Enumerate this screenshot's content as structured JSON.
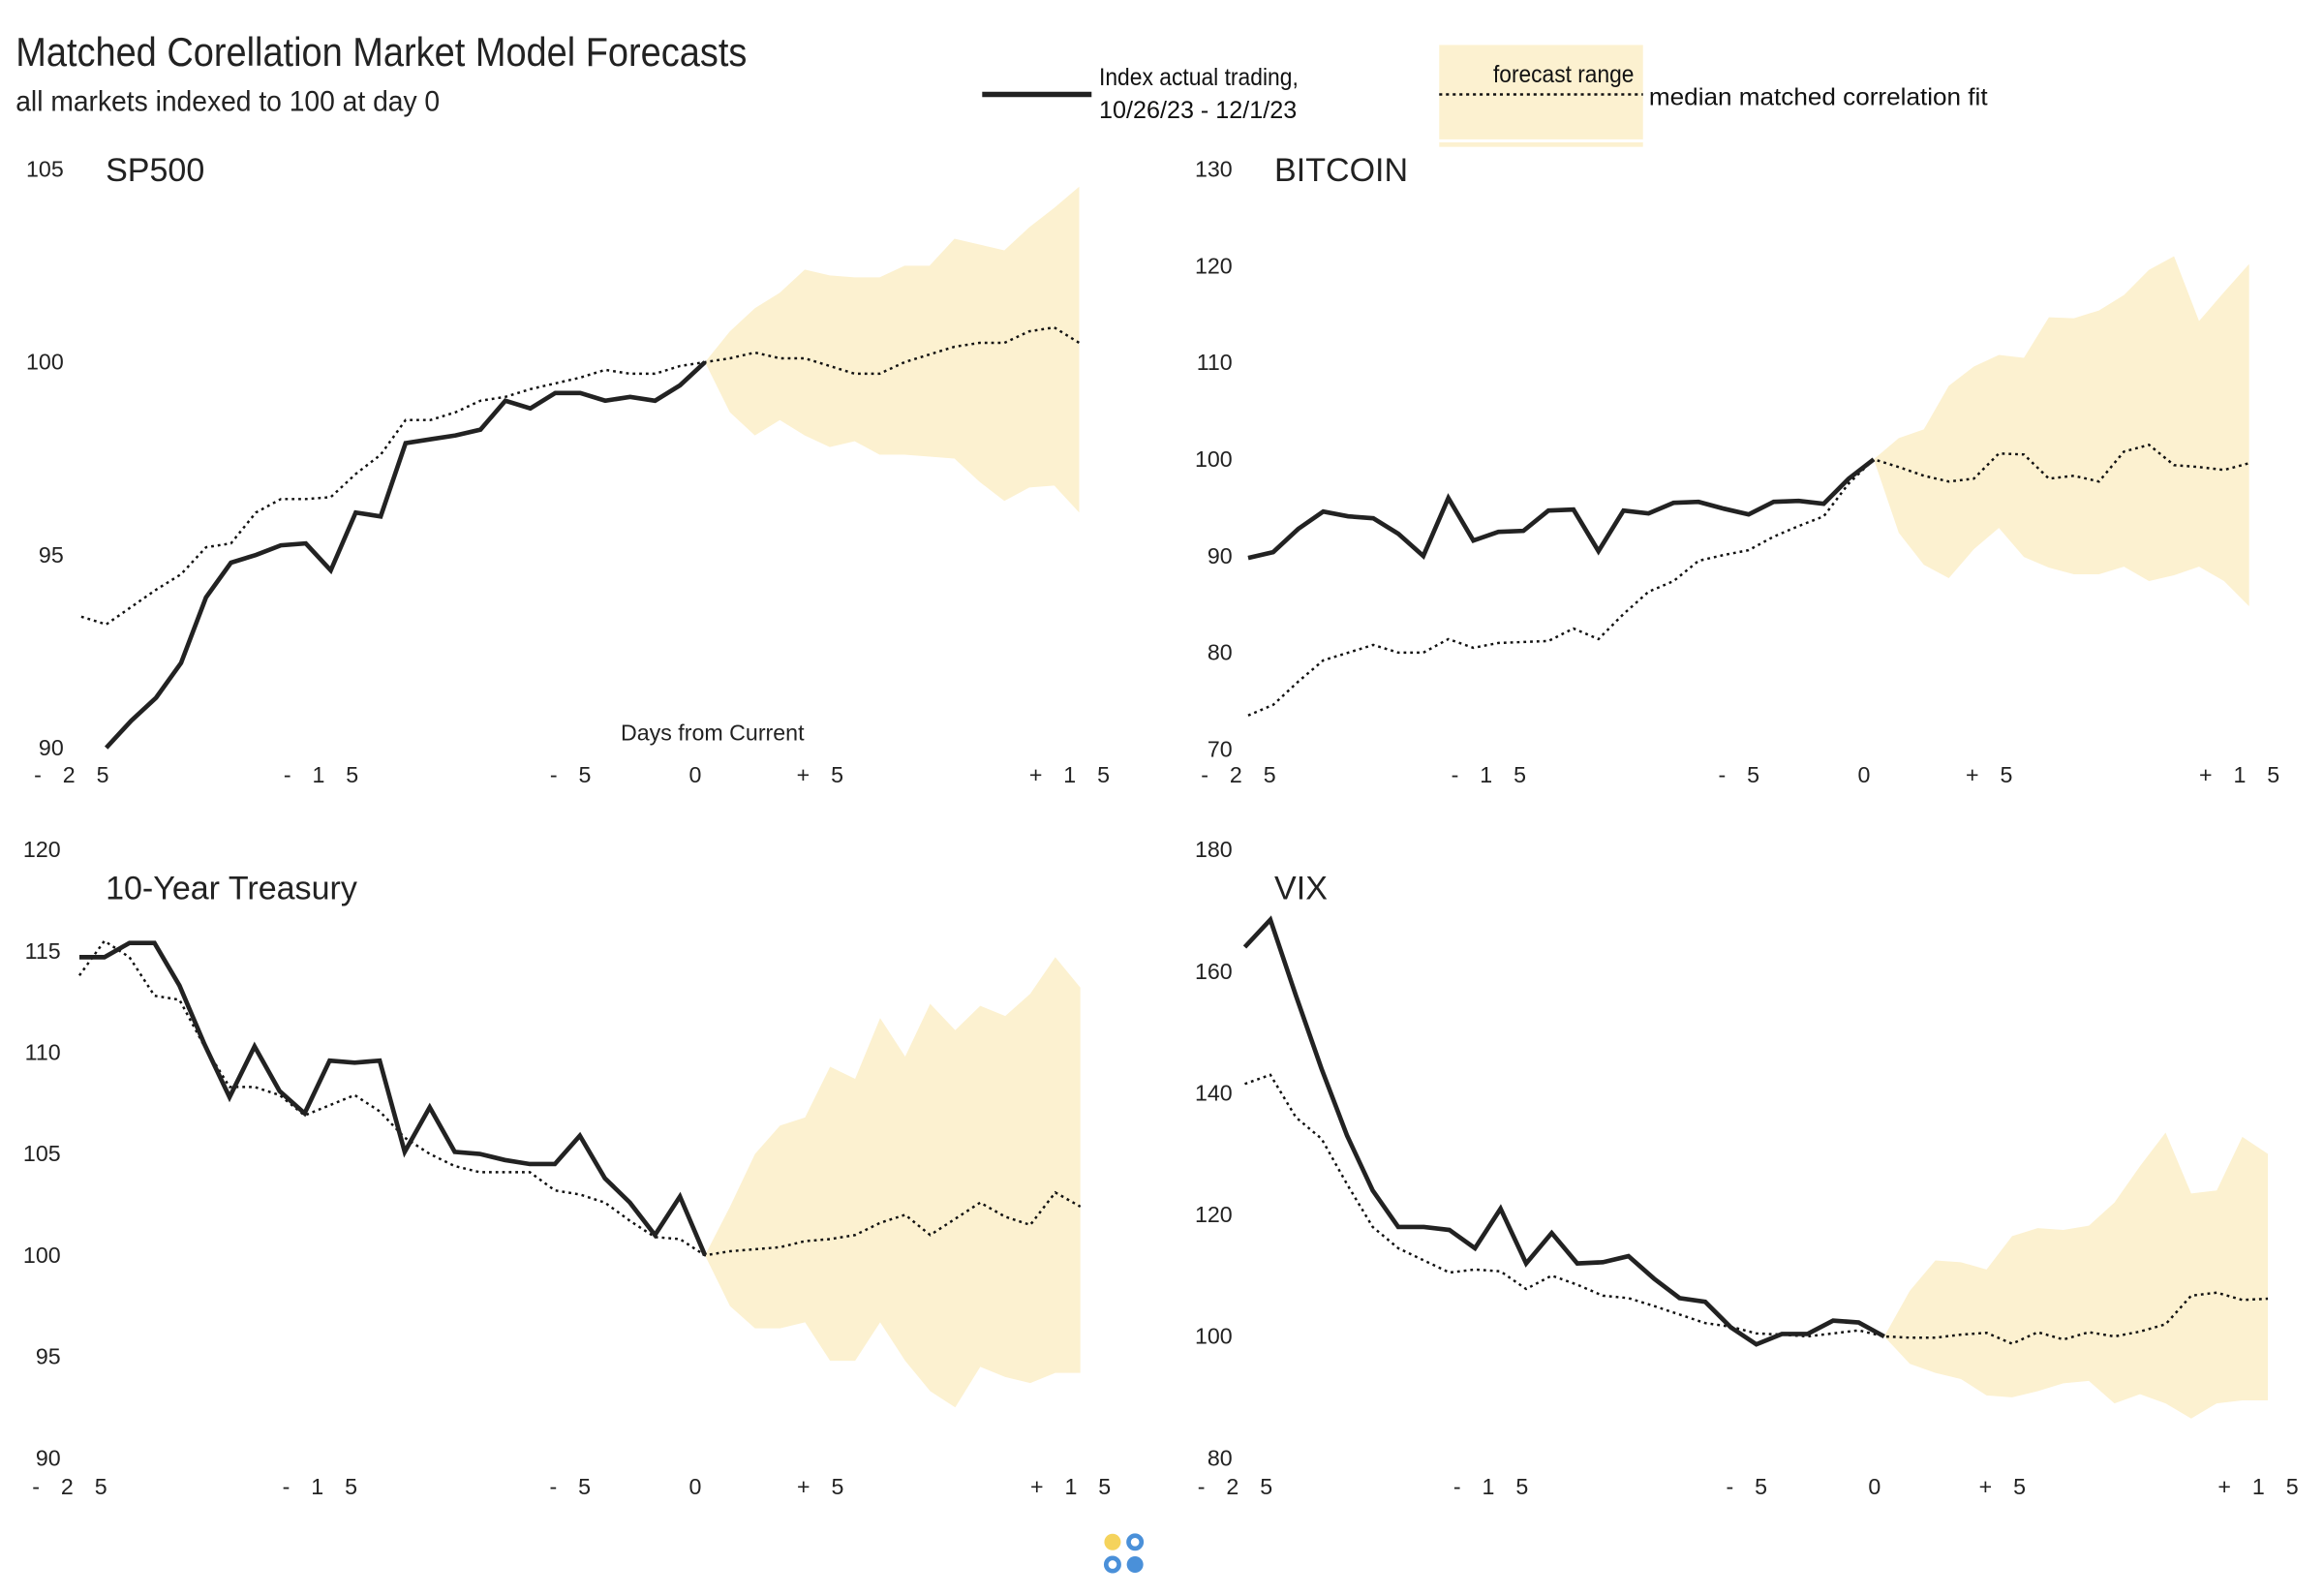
{
  "header": {
    "title": "Matched Corellation Market Model Forecasts",
    "subtitle": "all markets indexed to 100 at day 0"
  },
  "legend": {
    "actual_line1": "Index actual trading,",
    "actual_line2": "10/26/23 - 12/1/23",
    "forecast_range": "forecast range",
    "median": "median matched correlation fit"
  },
  "colors": {
    "actual": "#222222",
    "band": "#fcf1d0",
    "logo_yellow": "#f5d35c",
    "logo_blue": "#4a90d9"
  },
  "chart_data": [
    {
      "type": "line",
      "title": "SP500",
      "xlabel": "Days from Current",
      "x_ticks": [
        "- 2 5",
        "- 1 5",
        "- 5",
        "0",
        "+ 5",
        "+ 1 5"
      ],
      "x_tick_values": [
        -25,
        -15,
        -5,
        0,
        5,
        15
      ],
      "y_ticks": [
        90,
        95,
        100,
        105
      ],
      "ylim": [
        90,
        105
      ],
      "xlim": [
        -25,
        15
      ],
      "actual": {
        "x_start": -24,
        "values": [
          90.0,
          90.7,
          91.3,
          92.2,
          93.9,
          94.8,
          95.0,
          95.25,
          95.3,
          94.6,
          96.1,
          96.0,
          97.9,
          98.0,
          98.1,
          98.25,
          99.0,
          98.8,
          99.2,
          99.2,
          99.0,
          99.1,
          99.0,
          99.4,
          100
        ]
      },
      "median": {
        "x_start": -25,
        "values": [
          93.4,
          93.2,
          93.65,
          94.1,
          94.5,
          95.2,
          95.3,
          96.1,
          96.45,
          96.45,
          96.5,
          97.1,
          97.6,
          98.5,
          98.5,
          98.7,
          99.0,
          99.1,
          99.3,
          99.45,
          99.6,
          99.8,
          99.7,
          99.7,
          99.9,
          100,
          100.1,
          100.25,
          100.1,
          100.1,
          99.9,
          99.7,
          99.7,
          100.0,
          100.2,
          100.4,
          100.5,
          100.5,
          100.8,
          100.9,
          100.5
        ]
      },
      "band_upper": [
        100,
        100.8,
        101.4,
        101.8,
        102.4,
        102.25,
        102.2,
        102.2,
        102.5,
        102.5,
        103.2,
        103.05,
        102.9,
        103.5,
        104.0,
        104.55
      ],
      "band_lower": [
        100,
        98.7,
        98.1,
        98.5,
        98.1,
        97.8,
        97.95,
        97.6,
        97.6,
        97.55,
        97.5,
        96.9,
        96.4,
        96.75,
        96.8,
        96.1
      ]
    },
    {
      "type": "line",
      "title": "BITCOIN",
      "x_ticks": [
        "- 2 5",
        "- 1 5",
        "- 5",
        "0",
        "+ 5",
        "+ 1 5"
      ],
      "x_tick_values": [
        -25,
        -15,
        -5,
        0,
        5,
        15
      ],
      "y_ticks": [
        70,
        80,
        90,
        100,
        110,
        120,
        130
      ],
      "ylim": [
        70,
        130
      ],
      "xlim": [
        -25,
        15
      ],
      "actual": {
        "x_start": -25,
        "values": [
          89.8,
          90.4,
          92.8,
          94.6,
          94.1,
          93.9,
          92.3,
          90.0,
          96.0,
          91.6,
          92.5,
          92.6,
          94.7,
          94.8,
          90.5,
          94.7,
          94.4,
          95.5,
          95.6,
          94.9,
          94.3,
          95.6,
          95.7,
          95.4,
          98.0,
          100
        ]
      },
      "median": {
        "x_start": -25,
        "values": [
          73.5,
          74.6,
          77.0,
          79.2,
          80.0,
          80.8,
          80.0,
          80.0,
          81.4,
          80.5,
          81.0,
          81.1,
          81.2,
          82.5,
          81.4,
          84.0,
          86.3,
          87.4,
          89.5,
          90.1,
          90.6,
          92.0,
          93.1,
          94.1,
          97.5,
          100,
          99.2,
          98.3,
          97.7,
          98.0,
          100.6,
          100.5,
          98.0,
          98.3,
          97.7,
          100.8,
          101.5,
          99.4,
          99.2,
          98.9,
          99.6
        ]
      },
      "band_upper": [
        100,
        102.2,
        103.1,
        107.6,
        109.6,
        110.8,
        110.5,
        114.7,
        114.6,
        115.4,
        117.0,
        119.6,
        121.0,
        114.3,
        117.3,
        120.2
      ],
      "band_lower": [
        100,
        92.4,
        89.1,
        87.7,
        90.7,
        92.9,
        89.9,
        88.8,
        88.1,
        88.1,
        88.9,
        87.4,
        88.0,
        88.9,
        87.4,
        84.8
      ]
    },
    {
      "type": "line",
      "title": "10-Year Treasury",
      "x_ticks": [
        "- 2 5",
        "- 1 5",
        "- 5",
        "0",
        "+ 5",
        "+ 1 5"
      ],
      "x_tick_values": [
        -25,
        -15,
        -5,
        0,
        5,
        15
      ],
      "y_ticks": [
        90,
        95,
        100,
        105,
        110,
        115,
        120
      ],
      "ylim": [
        90,
        120
      ],
      "xlim": [
        -25,
        15
      ],
      "actual": {
        "x_start": -25,
        "values": [
          114.7,
          114.7,
          115.4,
          115.4,
          113.3,
          110.4,
          107.8,
          110.3,
          108.1,
          107.0,
          109.6,
          109.5,
          109.6,
          105.1,
          107.3,
          105.1,
          105.0,
          104.7,
          104.5,
          104.5,
          105.9,
          103.8,
          102.6,
          101.0,
          102.9,
          100
        ]
      },
      "median": {
        "x_start": -25,
        "values": [
          113.8,
          115.5,
          114.7,
          112.8,
          112.6,
          110.3,
          108.3,
          108.3,
          107.9,
          106.9,
          107.4,
          107.9,
          107.1,
          105.8,
          105.0,
          104.4,
          104.1,
          104.1,
          104.1,
          103.2,
          103.0,
          102.6,
          101.7,
          100.9,
          100.8,
          100,
          100.2,
          100.3,
          100.4,
          100.7,
          100.8,
          101.0,
          101.6,
          102.0,
          101.0,
          101.8,
          102.6,
          101.9,
          101.5,
          103.1,
          102.4
        ]
      },
      "band_upper": [
        100,
        102.4,
        105.0,
        106.4,
        106.8,
        109.3,
        108.7,
        111.7,
        109.8,
        112.4,
        111.1,
        112.3,
        111.8,
        112.9,
        114.7,
        113.2
      ],
      "band_lower": [
        100,
        97.5,
        96.4,
        96.4,
        96.7,
        94.8,
        94.8,
        96.7,
        94.8,
        93.3,
        92.5,
        94.5,
        94.0,
        93.7,
        94.2,
        94.2
      ]
    },
    {
      "type": "line",
      "title": "VIX",
      "x_ticks": [
        "- 2 5",
        "- 1 5",
        "- 5",
        "0",
        "+ 5",
        "+ 1 5"
      ],
      "x_tick_values": [
        -25,
        -15,
        -5,
        0,
        5,
        15
      ],
      "y_ticks": [
        80,
        100,
        120,
        140,
        160,
        180
      ],
      "ylim": [
        80,
        180
      ],
      "xlim": [
        -25,
        15
      ],
      "actual": {
        "x_start": -25,
        "values": [
          164,
          168.5,
          156,
          144,
          133,
          124,
          118,
          118,
          117.5,
          114.5,
          121,
          112,
          117,
          112,
          112.2,
          113.2,
          109.5,
          106.3,
          105.7,
          101.5,
          98.7,
          100.4,
          100.4,
          102.6,
          102.3,
          100
        ]
      },
      "median": {
        "x_start": -25,
        "values": [
          141.5,
          143,
          136,
          132.5,
          125,
          118,
          114.5,
          112.5,
          110.5,
          111,
          110.7,
          107.8,
          110,
          108.5,
          106.7,
          106.3,
          105,
          103.6,
          102.2,
          101.6,
          100.5,
          100.3,
          100,
          100.5,
          101,
          100,
          99.8,
          99.8,
          100.3,
          100.6,
          98.8,
          100.7,
          99.5,
          100.7,
          100,
          100.8,
          102,
          106.7,
          107.2,
          106,
          106.2
        ]
      },
      "band_upper": [
        100,
        107.5,
        112.5,
        112.2,
        111,
        116.5,
        117.8,
        117.5,
        118.2,
        122,
        128,
        133.5,
        123.5,
        124,
        132.8,
        130
      ],
      "band_lower": [
        100,
        95.5,
        94,
        93,
        90.3,
        90,
        91,
        92.3,
        92.7,
        89,
        90.5,
        89,
        86.5,
        89,
        89.5,
        89.5
      ]
    }
  ]
}
